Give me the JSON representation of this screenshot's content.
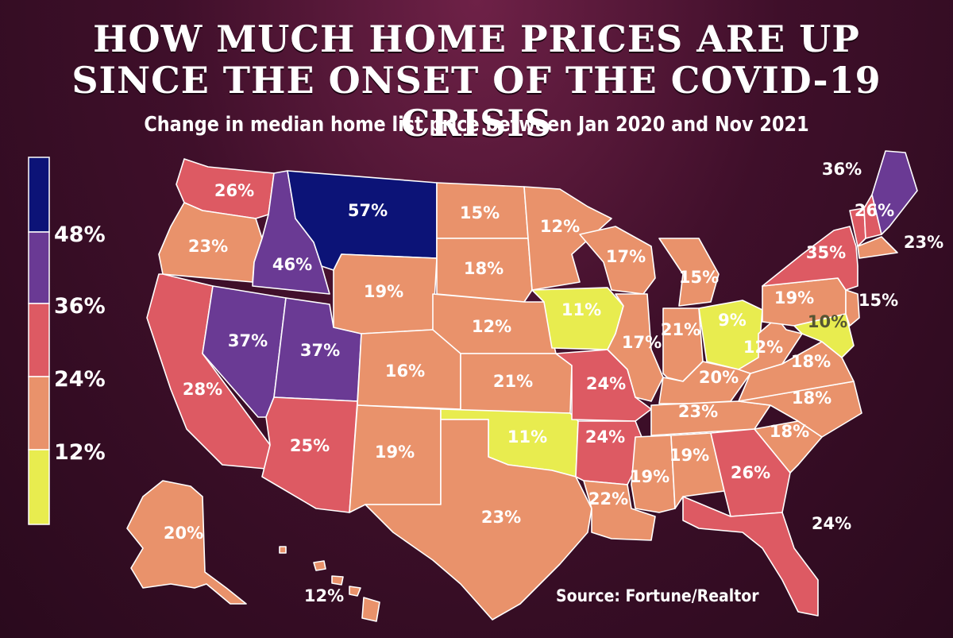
{
  "title_line1": "HOW MUCH HOME PRICES ARE UP",
  "title_line2": "SINCE THE ONSET OF THE COVID-19 CRISIS",
  "subtitle": "Change in median home list price between Jan 2020 and Nov 2021",
  "source": "Source: Fortune/Realtor",
  "legend": {
    "ticks": [
      "48%",
      "36%",
      "24%",
      "12%"
    ],
    "bands": [
      {
        "from": 48,
        "color": "#0c1377"
      },
      {
        "from": 36,
        "color": "#6a3a94"
      },
      {
        "from": 24,
        "color": "#dd5a63"
      },
      {
        "from": 12,
        "color": "#e9926b"
      },
      {
        "from": 0,
        "color": "#e8ec4f"
      }
    ]
  },
  "states": [
    {
      "id": "WA",
      "label": "26%",
      "value": 26
    },
    {
      "id": "OR",
      "label": "23%",
      "value": 23
    },
    {
      "id": "CA",
      "label": "28%",
      "value": 28
    },
    {
      "id": "ID",
      "label": "46%",
      "value": 46
    },
    {
      "id": "NV",
      "label": "37%",
      "value": 37
    },
    {
      "id": "UT",
      "label": "37%",
      "value": 37
    },
    {
      "id": "AZ",
      "label": "25%",
      "value": 25
    },
    {
      "id": "MT",
      "label": "57%",
      "value": 57
    },
    {
      "id": "WY",
      "label": "19%",
      "value": 19
    },
    {
      "id": "CO",
      "label": "16%",
      "value": 16
    },
    {
      "id": "NM",
      "label": "19%",
      "value": 19
    },
    {
      "id": "ND",
      "label": "15%",
      "value": 15
    },
    {
      "id": "SD",
      "label": "18%",
      "value": 18
    },
    {
      "id": "NE",
      "label": "12%",
      "value": 12
    },
    {
      "id": "KS",
      "label": "21%",
      "value": 21
    },
    {
      "id": "OK",
      "label": "11%",
      "value": 11
    },
    {
      "id": "TX",
      "label": "23%",
      "value": 23
    },
    {
      "id": "MN",
      "label": "12%",
      "value": 12
    },
    {
      "id": "IA",
      "label": "11%",
      "value": 11
    },
    {
      "id": "MO",
      "label": "24%",
      "value": 24
    },
    {
      "id": "AR",
      "label": "24%",
      "value": 24
    },
    {
      "id": "LA",
      "label": "22%",
      "value": 22
    },
    {
      "id": "WI",
      "label": "17%",
      "value": 17
    },
    {
      "id": "IL",
      "label": "17%",
      "value": 17
    },
    {
      "id": "MI",
      "label": "15%",
      "value": 15
    },
    {
      "id": "IN",
      "label": "21%",
      "value": 21
    },
    {
      "id": "OH",
      "label": "9%",
      "value": 9
    },
    {
      "id": "KY",
      "label": "20%",
      "value": 20
    },
    {
      "id": "TN",
      "label": "23%",
      "value": 23
    },
    {
      "id": "MS",
      "label": "19%",
      "value": 19
    },
    {
      "id": "AL",
      "label": "19%",
      "value": 19
    },
    {
      "id": "GA",
      "label": "26%",
      "value": 26
    },
    {
      "id": "FL",
      "label": "24%",
      "value": 24
    },
    {
      "id": "SC",
      "label": "18%",
      "value": 18
    },
    {
      "id": "NC",
      "label": "18%",
      "value": 18
    },
    {
      "id": "VA",
      "label": "18%",
      "value": 18
    },
    {
      "id": "WV",
      "label": "12%",
      "value": 12
    },
    {
      "id": "PA",
      "label": "19%",
      "value": 19
    },
    {
      "id": "NY",
      "label": "35%",
      "value": 35
    },
    {
      "id": "VT",
      "label": "26%",
      "value": 26
    },
    {
      "id": "NH",
      "label": "26%",
      "value": 26
    },
    {
      "id": "ME",
      "label": "36%",
      "value": 36
    },
    {
      "id": "MA",
      "label": "23%",
      "value": 23
    },
    {
      "id": "NJ",
      "label": "15%",
      "value": 15
    },
    {
      "id": "MD",
      "label": "10%",
      "value": 10
    },
    {
      "id": "AK",
      "label": "20%",
      "value": 20
    },
    {
      "id": "HI",
      "label": "12%",
      "value": 12
    }
  ]
}
